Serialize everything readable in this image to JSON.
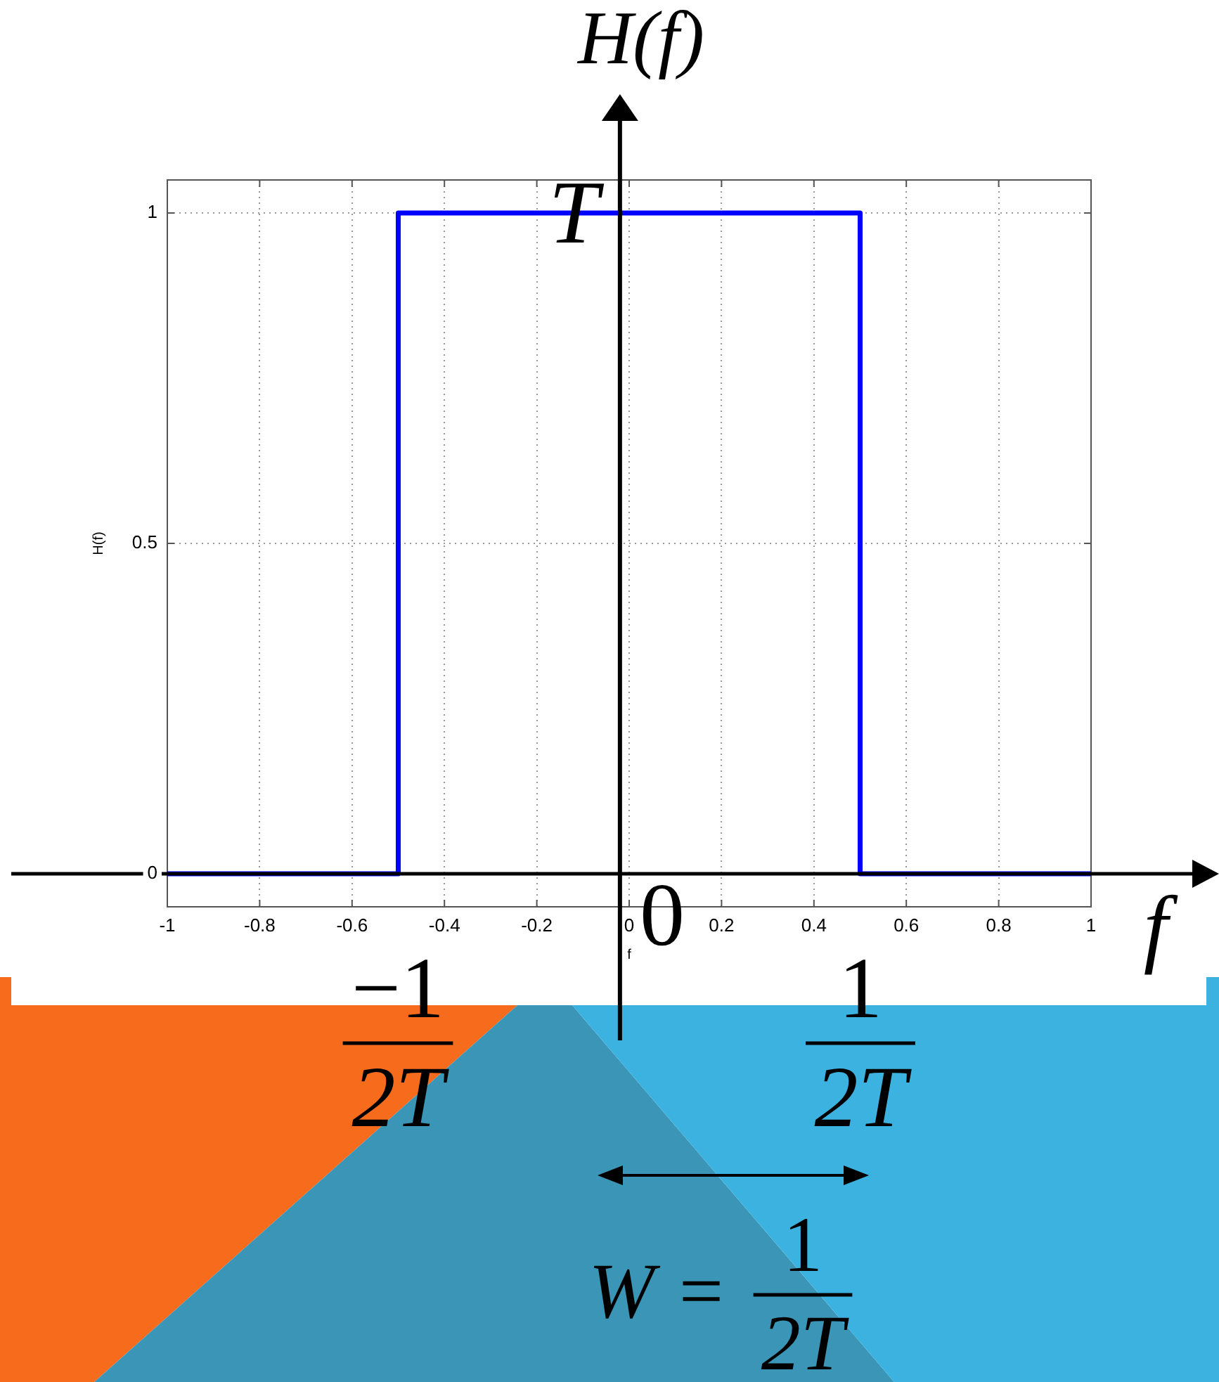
{
  "chart_data": {
    "type": "line",
    "x": [
      -1,
      -0.5,
      -0.5,
      0.5,
      0.5,
      1
    ],
    "values": [
      0,
      0,
      1,
      1,
      0,
      0
    ],
    "color": "#0000ff",
    "xlim": [
      -1,
      1
    ],
    "ylim": [
      -0.05,
      1.05
    ],
    "xticks": [
      -1,
      -0.8,
      -0.6,
      -0.4,
      -0.2,
      0,
      0.2,
      0.4,
      0.6,
      0.8,
      1
    ],
    "yticks": [
      0,
      0.5,
      1
    ],
    "xlabel": "f",
    "ylabel": "H(f)",
    "grid": true,
    "ref_lines": [
      {
        "axis": "x",
        "value": -0.02,
        "color": "#000000"
      },
      {
        "axis": "y",
        "value": 0,
        "color": "#000000"
      }
    ],
    "annotations": [
      {
        "text": "T",
        "x": -0.12,
        "y": 1
      },
      "0",
      "−1\n2T",
      "1\n2T",
      "H(f)",
      "f",
      "W =",
      "1\n2T"
    ]
  }
}
